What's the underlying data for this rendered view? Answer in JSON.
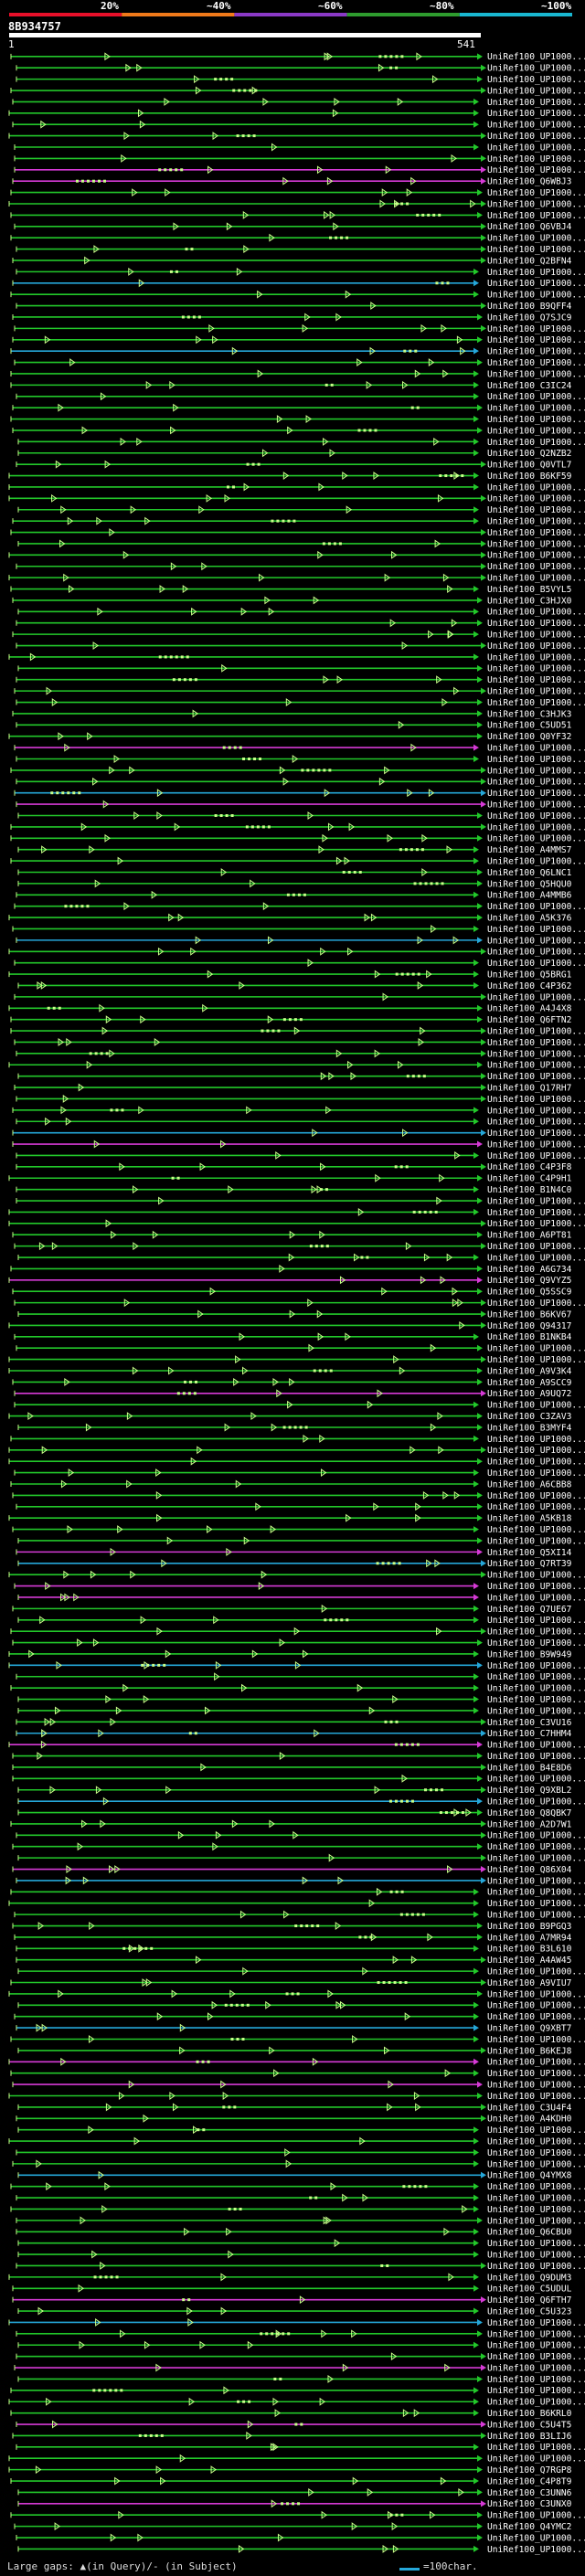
{
  "query": {
    "id": "8B934757",
    "start_label": "1",
    "end_label": "541",
    "length": 541
  },
  "identity_scale": [
    {
      "label": "20%"
    },
    {
      "label": "~40%"
    },
    {
      "label": "~60%"
    },
    {
      "label": "~80%"
    },
    {
      "label": "~100%"
    }
  ],
  "colors": {
    "background": "#000000",
    "green": "#22c82a",
    "magenta": "#d63ad6",
    "cyan": "#25a7d9",
    "arrow": "#c8ff8a",
    "scale": [
      "#e8102a",
      "#f07a1a",
      "#8a39c6",
      "#2e9c2e",
      "#19b7d1"
    ]
  },
  "hits": [
    "UniRef100_UP1000...",
    "UniRef100_UP1000...",
    "UniRef100_UP1000...",
    "UniRef100_UP1000...",
    "UniRef100_UP1000...",
    "UniRef100_UP1000...",
    "UniRef100_UP1000...",
    "UniRef100_UP1000...",
    "UniRef100_UP1000...",
    "UniRef100_UP1000...",
    "UniRef100_UP1000...",
    "UniRef100_Q6WBJ3",
    "UniRef100_UP1000...",
    "UniRef100_UP1000...",
    "UniRef100_UP1000...",
    "UniRef100_Q6VBJ4",
    "UniRef100_UP1000...",
    "UniRef100_UP1000...",
    "UniRef100_Q2BFN4",
    "UniRef100_UP1000...",
    "UniRef100_UP1000...",
    "UniRef100_UP1000...",
    "UniRef100_B9QFF4",
    "UniRef100_Q7SJC9",
    "UniRef100_UP1000...",
    "UniRef100_UP1000...",
    "UniRef100_UP1000...",
    "UniRef100_UP1000...",
    "UniRef100_UP1000...",
    "UniRef100_C3IC24",
    "UniRef100_UP1000...",
    "UniRef100_UP1000...",
    "UniRef100_UP1000...",
    "UniRef100_UP1000...",
    "UniRef100_UP1000...",
    "UniRef100_Q2NZB2",
    "UniRef100_Q0VTL7",
    "UniRef100_B6KF59",
    "UniRef100_UP1000...",
    "UniRef100_UP1000...",
    "UniRef100_UP1000...",
    "UniRef100_UP1000...",
    "UniRef100_UP1000...",
    "UniRef100_UP1000...",
    "UniRef100_UP1000...",
    "UniRef100_UP1000...",
    "UniRef100_UP1000...",
    "UniRef100_B5VYL5",
    "UniRef100_C3HJX0",
    "UniRef100_UP1000...",
    "UniRef100_UP1000...",
    "UniRef100_UP1000...",
    "UniRef100_UP1000...",
    "UniRef100_UP1000...",
    "UniRef100_UP1000...",
    "UniRef100_UP1000...",
    "UniRef100_UP1000...",
    "UniRef100_UP1000...",
    "UniRef100_C3HJK3",
    "UniRef100_C5UD51",
    "UniRef100_Q0YF32",
    "UniRef100_UP1000...",
    "UniRef100_UP1000...",
    "UniRef100_UP1000...",
    "UniRef100_UP1000...",
    "UniRef100_UP1000...",
    "UniRef100_UP1000...",
    "UniRef100_UP1000...",
    "UniRef100_UP1000...",
    "UniRef100_UP1000...",
    "UniRef100_A4MMS7",
    "UniRef100_UP1000...",
    "UniRef100_Q6LNC1",
    "UniRef100_Q5HQU0",
    "UniRef100_A4MMB6",
    "UniRef100_UP1000...",
    "UniRef100_A5K376",
    "UniRef100_UP1000...",
    "UniRef100_UP1000...",
    "UniRef100_UP1000...",
    "UniRef100_UP1000...",
    "UniRef100_Q5BRG1",
    "UniRef100_C4P362",
    "UniRef100_UP1000...",
    "UniRef100_A4J4X8",
    "UniRef100_Q6FTN2",
    "UniRef100_UP1000...",
    "UniRef100_UP1000...",
    "UniRef100_UP1000...",
    "UniRef100_UP1000...",
    "UniRef100_UP1000...",
    "UniRef100_Q17RH7",
    "UniRef100_UP1000...",
    "UniRef100_UP1000...",
    "UniRef100_UP1000...",
    "UniRef100_UP1000...",
    "UniRef100_UP1000...",
    "UniRef100_UP1000...",
    "UniRef100_C4P3F8",
    "UniRef100_C4P9H1",
    "UniRef100_B1N4C0",
    "UniRef100_UP1000...",
    "UniRef100_UP1000...",
    "UniRef100_UP1000...",
    "UniRef100_A6PT81",
    "UniRef100_UP1000...",
    "UniRef100_UP1000...",
    "UniRef100_A6G734",
    "UniRef100_Q9VYZ5",
    "UniRef100_Q5SSC9",
    "UniRef100_UP1000...",
    "UniRef100_B6KV67",
    "UniRef100_Q94317",
    "UniRef100_B1NKB4",
    "UniRef100_UP1000...",
    "UniRef100_UP1000...",
    "UniRef100_A9V3K4",
    "UniRef100_A9SCC9",
    "UniRef100_A9UQ72",
    "UniRef100_UP1000...",
    "UniRef100_C3ZAV3",
    "UniRef100_B3MYF4",
    "UniRef100_UP1000...",
    "UniRef100_UP1000...",
    "UniRef100_UP1000...",
    "UniRef100_UP1000...",
    "UniRef100_A6CBB8",
    "UniRef100_UP1000...",
    "UniRef100_UP1000...",
    "UniRef100_A5KB18",
    "UniRef100_UP1000...",
    "UniRef100_UP1000...",
    "UniRef100_Q5XI14",
    "UniRef100_Q7RT39",
    "UniRef100_UP1000...",
    "UniRef100_UP1000...",
    "UniRef100_UP1000...",
    "UniRef100_Q7UE67",
    "UniRef100_UP1000...",
    "UniRef100_UP1000...",
    "UniRef100_UP1000...",
    "UniRef100_B9W949",
    "UniRef100_UP1000...",
    "UniRef100_UP1000...",
    "UniRef100_UP1000...",
    "UniRef100_UP1000...",
    "UniRef100_UP1000...",
    "UniRef100_C3VU16",
    "UniRef100_C7HHM4",
    "UniRef100_UP1000...",
    "UniRef100_UP1000...",
    "UniRef100_B4E8D6",
    "UniRef100_UP1000...",
    "UniRef100_Q9XBL2",
    "UniRef100_UP1000...",
    "UniRef100_Q8QBK7",
    "UniRef100_A2D7W1",
    "UniRef100_UP1000...",
    "UniRef100_UP1000...",
    "UniRef100_UP1000...",
    "UniRef100_Q86X04",
    "UniRef100_UP1000...",
    "UniRef100_UP1000...",
    "UniRef100_UP1000...",
    "UniRef100_UP1000...",
    "UniRef100_B9PGQ3",
    "UniRef100_A7MR94",
    "UniRef100_B3L610",
    "UniRef100_A4AW45",
    "UniRef100_UP1000...",
    "UniRef100_A9VIU7",
    "UniRef100_UP1000...",
    "UniRef100_UP1000...",
    "UniRef100_UP1000...",
    "UniRef100_Q9XBT7",
    "UniRef100_UP1000...",
    "UniRef100_B6KEJ8",
    "UniRef100_UP1000...",
    "UniRef100_UP1000...",
    "UniRef100_UP1000...",
    "UniRef100_UP1000...",
    "UniRef100_C3U4F4",
    "UniRef100_A4KDH0",
    "UniRef100_UP1000...",
    "UniRef100_UP1000...",
    "UniRef100_UP1000...",
    "UniRef100_UP1000...",
    "UniRef100_Q4YMX8",
    "UniRef100_UP1000...",
    "UniRef100_UP1000...",
    "UniRef100_UP1000...",
    "UniRef100_UP1000...",
    "UniRef100_Q6CBU0",
    "UniRef100_UP1000...",
    "UniRef100_UP1000...",
    "UniRef100_UP1000...",
    "UniRef100_Q9DUM3",
    "UniRef100_C5UDUL",
    "UniRef100_Q6FTH7",
    "UniRef100_C5U323",
    "UniRef100_UP1000...",
    "UniRef100_UP1000...",
    "UniRef100_UP1000...",
    "UniRef100_UP1000...",
    "UniRef100_UP1000...",
    "UniRef100_UP1000...",
    "UniRef100_UP1000...",
    "UniRef100_UP1000...",
    "UniRef100_B6KRL0",
    "UniRef100_C5U4T5",
    "UniRef100_B3LIJ6",
    "UniRef100_UP1000...",
    "UniRef100_UP1000...",
    "UniRef100_Q7RGP8",
    "UniRef100_C4P8T9",
    "UniRef100_C3UNN6",
    "UniRef100_C3UNX0",
    "UniRef100_UP1000...",
    "UniRef100_Q4YMC2",
    "UniRef100_UP1000...",
    "UniRef100_UP1000..."
  ],
  "footer": {
    "gaps_label": "Large gaps: ▲(in Query)/- (in Subject)",
    "scale_label": "=100char."
  }
}
